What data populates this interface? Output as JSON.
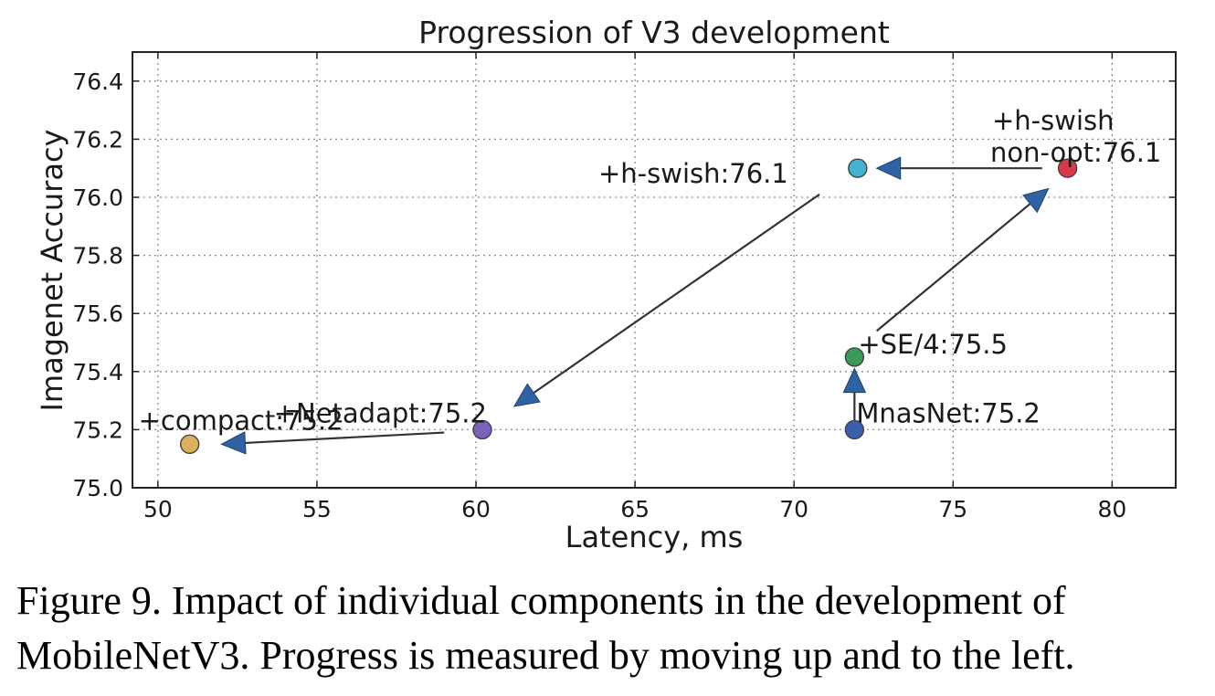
{
  "chart_data": {
    "type": "scatter",
    "title": "Progression of V3 development",
    "xlabel": "Latency, ms",
    "ylabel": "Imagenet Accuracy",
    "xlim": [
      49.2,
      82.0
    ],
    "ylim": [
      75.0,
      76.5
    ],
    "xticks": [
      50,
      55,
      60,
      65,
      70,
      75,
      80
    ],
    "yticks": [
      75.0,
      75.2,
      75.4,
      75.6,
      75.8,
      76.0,
      76.2,
      76.4
    ],
    "ytick_labels": [
      "75.0",
      "75.2",
      "75.4",
      "75.6",
      "75.8",
      "76.0",
      "76.2",
      "76.4"
    ],
    "grid": true,
    "points": [
      {
        "label": "MnasNet:75.2",
        "x": 71.9,
        "y": 75.2,
        "color": "#3a5fb0"
      },
      {
        "label": "+SE/4:75.5",
        "x": 71.9,
        "y": 75.45,
        "color": "#3a9a5a"
      },
      {
        "label": "+h-swish\nnon-opt:76.1",
        "x": 78.6,
        "y": 76.1,
        "color": "#d63a48"
      },
      {
        "label": "+h-swish:76.1",
        "x": 72.0,
        "y": 76.1,
        "color": "#44b3d0"
      },
      {
        "label": "+Netadapt:75.2",
        "x": 60.2,
        "y": 75.2,
        "color": "#7b62bd"
      },
      {
        "label": "+compact:75.2",
        "x": 51.0,
        "y": 75.15,
        "color": "#d9b05e"
      }
    ],
    "arrows": [
      {
        "from": [
          71.9,
          75.23
        ],
        "to": [
          71.9,
          75.41
        ]
      },
      {
        "from": [
          72.6,
          75.54
        ],
        "to": [
          78.0,
          76.03
        ]
      },
      {
        "from": [
          77.8,
          76.1
        ],
        "to": [
          72.6,
          76.1
        ]
      },
      {
        "from": [
          70.8,
          76.01
        ],
        "to": [
          61.2,
          75.28
        ]
      },
      {
        "from": [
          59.0,
          75.19
        ],
        "to": [
          52.0,
          75.15
        ]
      }
    ]
  },
  "caption": "Figure 9. Impact of individual components in the development of MobileNetV3. Progress is measured by moving up and to the left."
}
